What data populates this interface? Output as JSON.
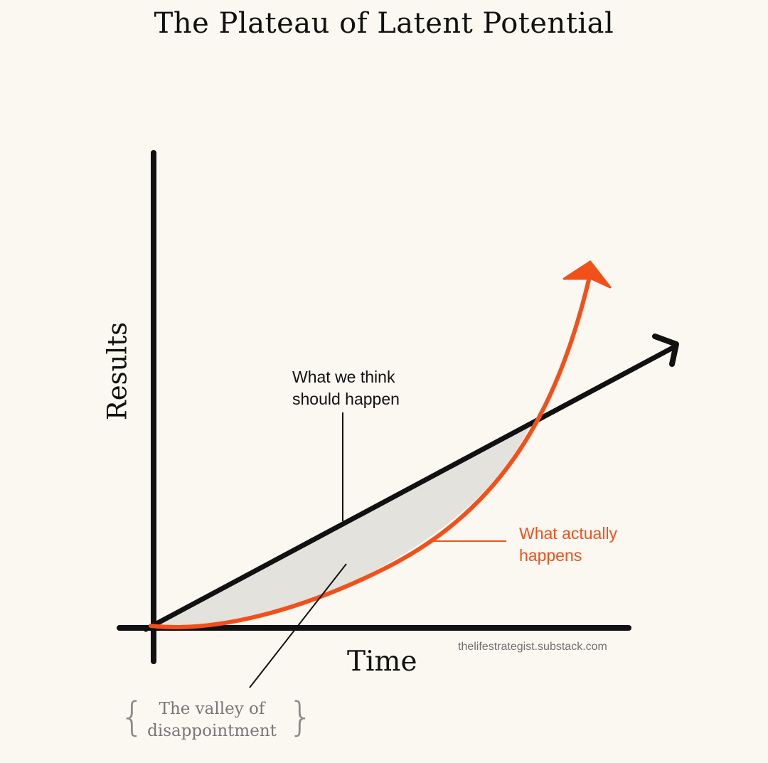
{
  "title": "The Plateau of Latent Potential",
  "axes": {
    "y_label": "Results",
    "x_label": "Time"
  },
  "annotations": {
    "expected": {
      "line1": "What we think",
      "line2": "should happen"
    },
    "actual": {
      "line1": "What actually",
      "line2": "happens"
    },
    "valley": {
      "line1": "The valley of",
      "line2": "disappointment"
    }
  },
  "source": "thelifestrategist.substack.com",
  "colors": {
    "background": "#faf8f1",
    "axis": "#111111",
    "expected_line": "#111111",
    "actual_curve": "#f2501b",
    "valley_fill": "#e3e2dc",
    "valley_text": "#777777",
    "source_text": "#6f6f6f"
  }
}
